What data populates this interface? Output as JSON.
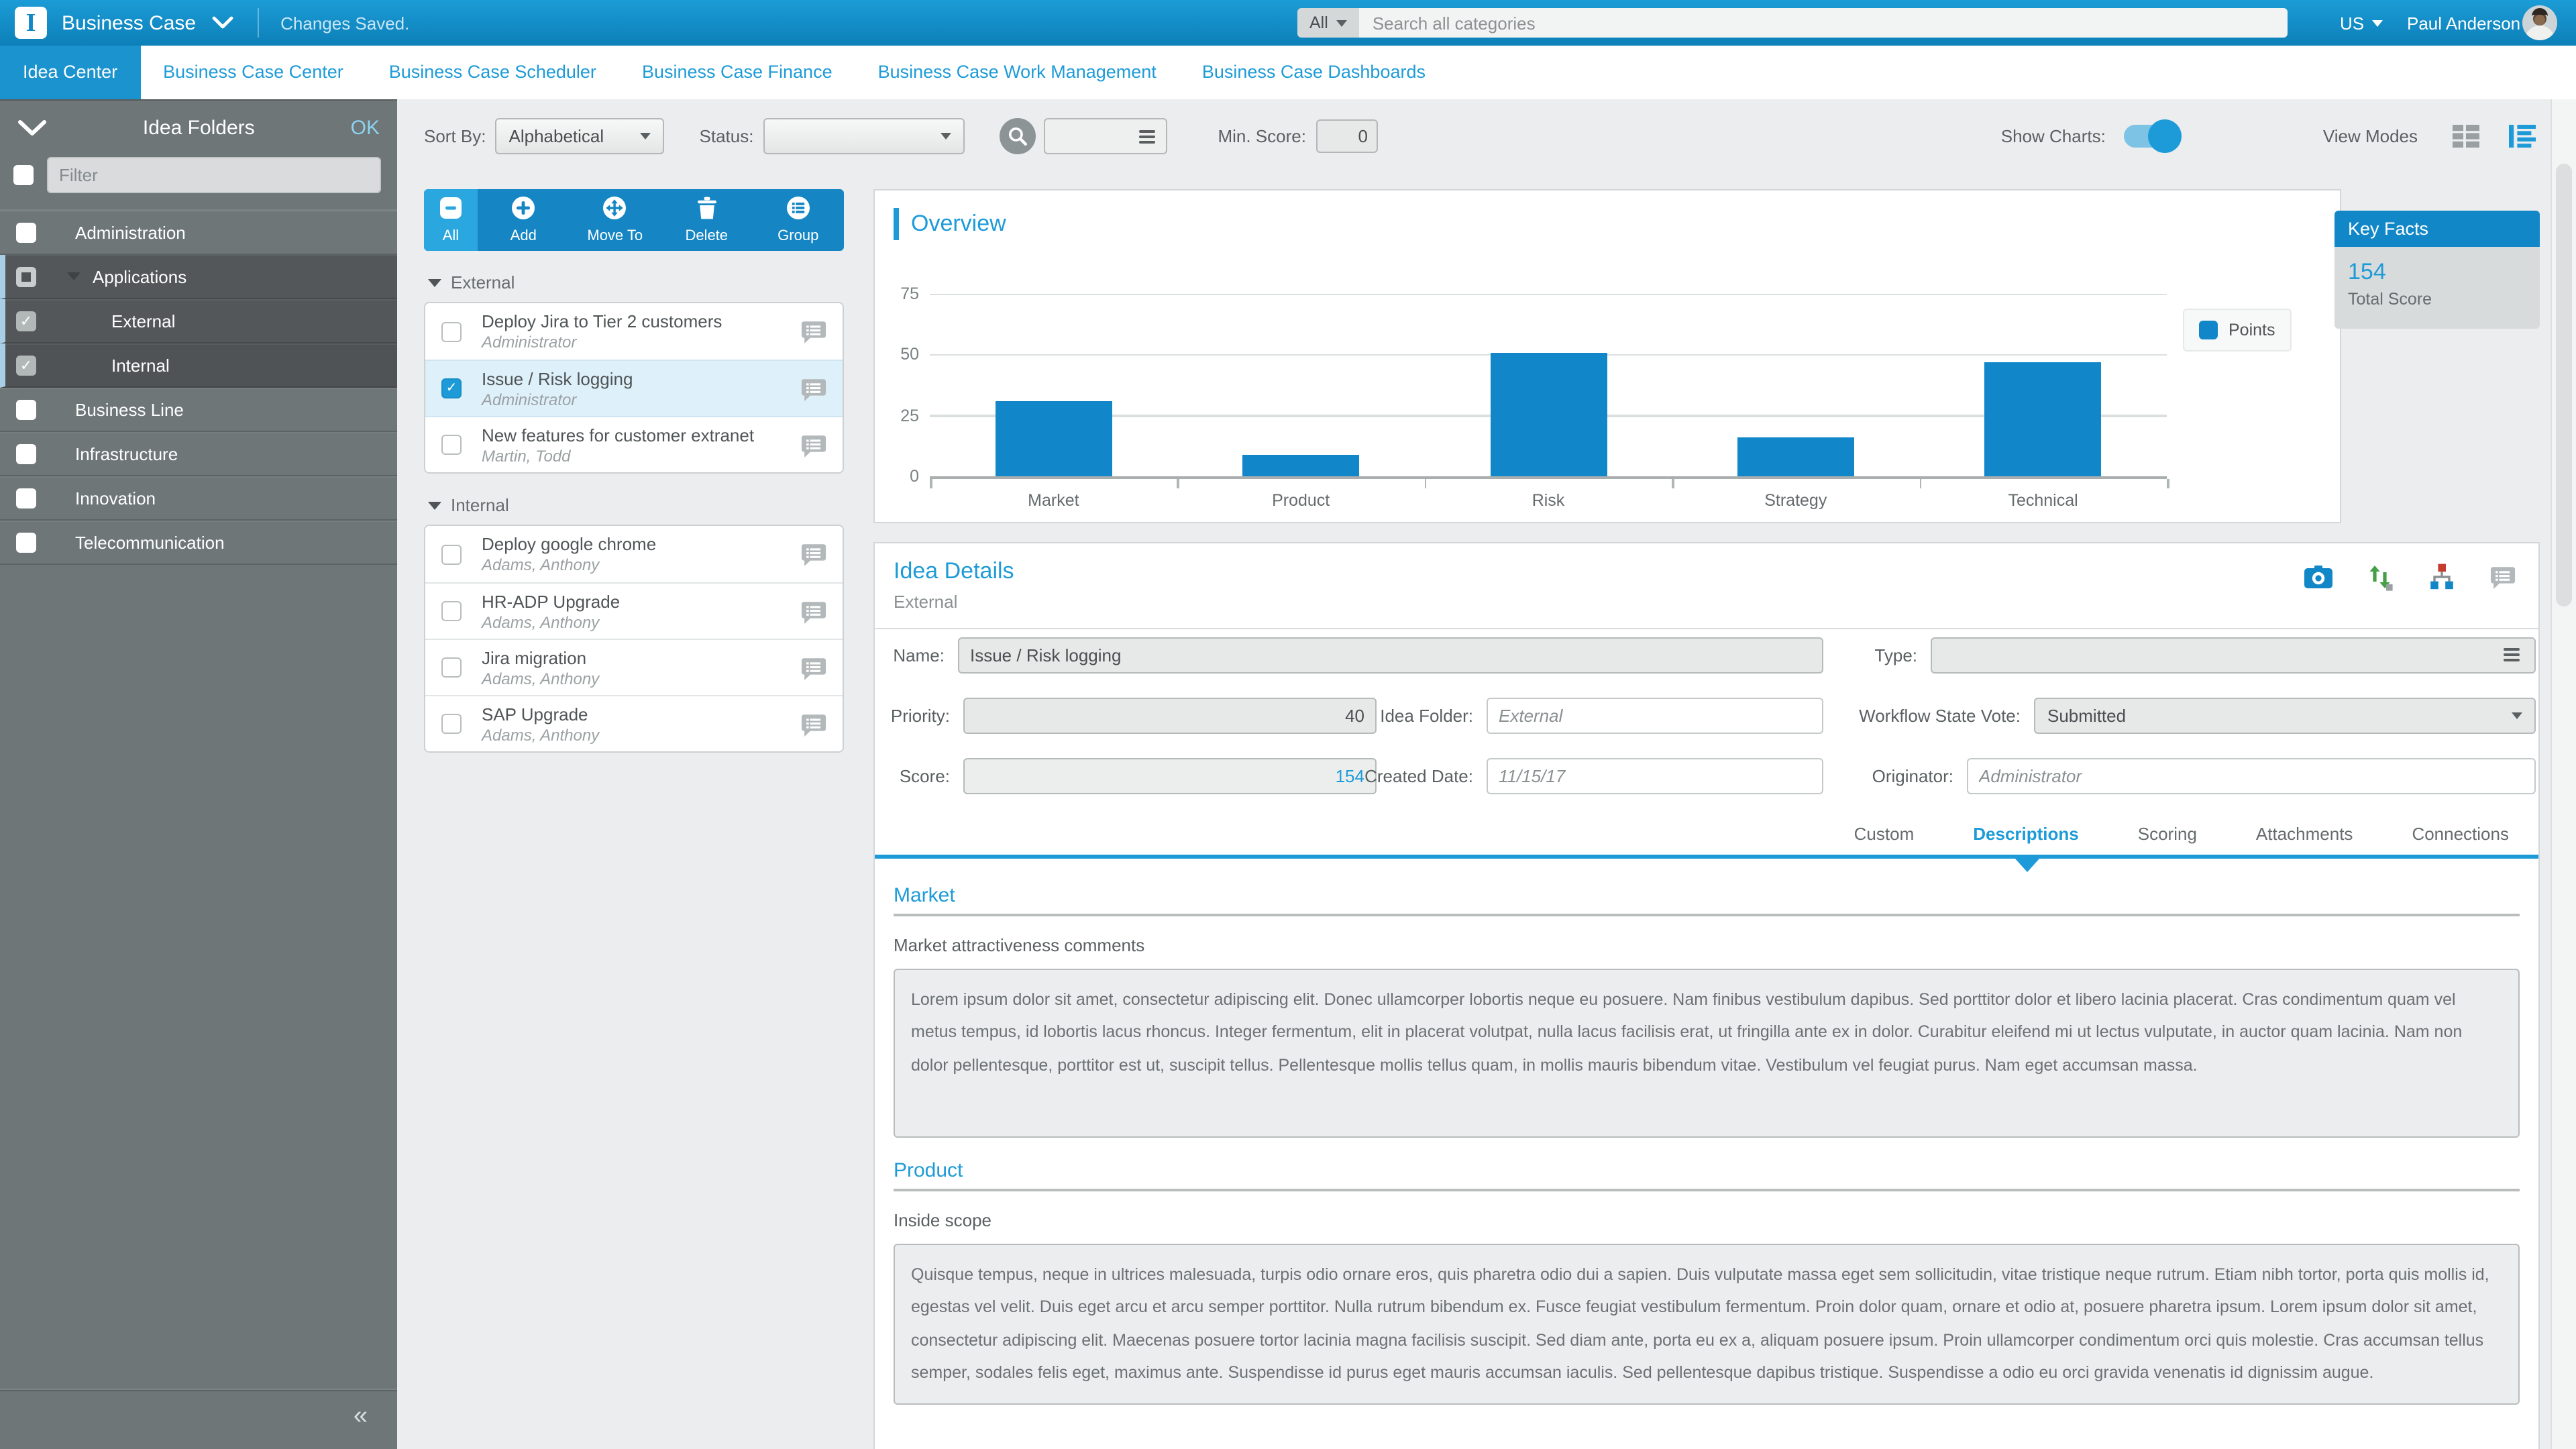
{
  "colors": {
    "accent_blue": "#1d9bd8",
    "header_blue": "#1287c8",
    "bar_blue": "#1186c9",
    "action_bar_blue": "#1586c3",
    "sidebar_gray": "#6e7678"
  },
  "header": {
    "logo_letter": "I",
    "app_title": "Business Case",
    "status_message": "Changes Saved.",
    "search": {
      "scope": "All",
      "placeholder": "Search all categories"
    },
    "locale": "US",
    "user_name": "Paul Anderson"
  },
  "nav": {
    "tabs": [
      {
        "label": "Idea Center",
        "active": true
      },
      {
        "label": "Business Case Center",
        "active": false
      },
      {
        "label": "Business Case Scheduler",
        "active": false
      },
      {
        "label": "Business Case Finance",
        "active": false
      },
      {
        "label": "Business Case Work Management",
        "active": false
      },
      {
        "label": "Business Case Dashboards",
        "active": false
      }
    ]
  },
  "sidebar": {
    "title": "Idea Folders",
    "ok_label": "OK",
    "filter_placeholder": "Filter",
    "items": [
      {
        "label": "Administration",
        "checked": "no",
        "level": 0,
        "selected": false,
        "expanded": false
      },
      {
        "label": "Applications",
        "checked": "partial",
        "level": 0,
        "selected": true,
        "expanded": true
      },
      {
        "label": "External",
        "checked": "yes",
        "level": 1,
        "selected": true,
        "expanded": false
      },
      {
        "label": "Internal",
        "checked": "yes",
        "level": 1,
        "selected": true,
        "alt": true,
        "expanded": false
      },
      {
        "label": "Business Line",
        "checked": "no",
        "level": 0,
        "selected": false,
        "expanded": false
      },
      {
        "label": "Infrastructure",
        "checked": "no",
        "level": 0,
        "selected": false,
        "expanded": false
      },
      {
        "label": "Innovation",
        "checked": "no",
        "level": 0,
        "selected": false,
        "expanded": false
      },
      {
        "label": "Telecommunication",
        "checked": "no",
        "level": 0,
        "selected": false,
        "expanded": false
      }
    ]
  },
  "toolbar": {
    "sort_by_label": "Sort By:",
    "sort_by_value": "Alphabetical",
    "status_label": "Status:",
    "status_value": "",
    "min_score_label": "Min. Score:",
    "min_score_value": "0",
    "show_charts_label": "Show Charts:",
    "show_charts_on": true,
    "view_modes_label": "View Modes"
  },
  "idea_list": {
    "actions": [
      {
        "label": "All",
        "icon": "select-all-icon"
      },
      {
        "label": "Add",
        "icon": "add-icon"
      },
      {
        "label": "Move To",
        "icon": "move-to-icon"
      },
      {
        "label": "Delete",
        "icon": "delete-icon"
      },
      {
        "label": "Group",
        "icon": "group-icon"
      }
    ],
    "groups": [
      {
        "name": "External",
        "items": [
          {
            "title": "Deploy Jira to Tier 2 customers",
            "author": "Administrator",
            "checked": false,
            "selected": false
          },
          {
            "title": "Issue / Risk logging",
            "author": "Administrator",
            "checked": true,
            "selected": true
          },
          {
            "title": "New features for customer extranet",
            "author": "Martin, Todd",
            "checked": false,
            "selected": false
          }
        ]
      },
      {
        "name": "Internal",
        "items": [
          {
            "title": "Deploy google chrome",
            "author": "Adams, Anthony",
            "checked": false,
            "selected": false
          },
          {
            "title": "HR-ADP Upgrade",
            "author": "Adams, Anthony",
            "checked": false,
            "selected": false
          },
          {
            "title": "Jira migration",
            "author": "Adams, Anthony",
            "checked": false,
            "selected": false
          },
          {
            "title": "SAP Upgrade",
            "author": "Adams, Anthony",
            "checked": false,
            "selected": false
          }
        ]
      }
    ]
  },
  "chart_data": {
    "type": "bar",
    "title": "Overview",
    "categories": [
      "Market",
      "Product",
      "Risk",
      "Strategy",
      "Technical"
    ],
    "values": [
      31,
      9,
      51,
      16,
      47
    ],
    "series_name": "Points",
    "xlabel": "",
    "ylabel": "",
    "ylim": [
      0,
      75
    ],
    "yticks": [
      0,
      25,
      50,
      75
    ],
    "grid": true,
    "legend_position": "right",
    "bar_color": "#1186c9"
  },
  "key_facts": {
    "title": "Key Facts",
    "score": "154",
    "score_label": "Total Score"
  },
  "idea_details": {
    "title": "Idea Details",
    "subtitle": "External",
    "fields": {
      "name_label": "Name:",
      "name_value": "Issue / Risk logging",
      "type_label": "Type:",
      "type_value": "",
      "priority_label": "Priority:",
      "priority_value": "40",
      "idea_folder_label": "Idea Folder:",
      "idea_folder_value": "External",
      "workflow_label": "Workflow State Vote:",
      "workflow_value": "Submitted",
      "score_label": "Score:",
      "score_value": "154",
      "created_label": "Created Date:",
      "created_value": "11/15/17",
      "originator_label": "Originator:",
      "originator_value": "Administrator"
    },
    "tabs": [
      {
        "label": "Custom",
        "active": false
      },
      {
        "label": "Descriptions",
        "active": true
      },
      {
        "label": "Scoring",
        "active": false
      },
      {
        "label": "Attachments",
        "active": false
      },
      {
        "label": "Connections",
        "active": false
      }
    ],
    "sections": [
      {
        "heading": "Market",
        "field_label": "Market attractiveness comments",
        "text": "Lorem ipsum dolor sit amet, consectetur adipiscing elit. Donec ullamcorper lobortis neque eu posuere. Nam finibus vestibulum dapibus. Sed porttitor dolor et libero lacinia placerat. Cras condimentum quam vel metus tempus, id lobortis lacus rhoncus. Integer fermentum, elit in placerat volutpat, nulla lacus facilisis erat, ut fringilla ante ex in dolor. Curabitur eleifend mi ut lectus vulputate, in auctor quam lacinia. Nam non dolor pellentesque, porttitor est ut, suscipit tellus. Pellentesque mollis tellus quam, in mollis mauris bibendum vitae. Vestibulum vel feugiat purus. Nam eget accumsan massa."
      },
      {
        "heading": "Product",
        "field_label": "Inside scope",
        "text": "Quisque tempus, neque in ultrices malesuada, turpis odio ornare eros, quis pharetra odio dui a sapien. Duis vulputate massa eget sem sollicitudin, vitae tristique neque rutrum. Etiam nibh tortor, porta quis mollis id, egestas vel velit. Duis eget arcu et arcu semper porttitor. Nulla rutrum bibendum ex. Fusce feugiat vestibulum fermentum. Proin dolor quam, ornare et odio at, posuere pharetra ipsum. Lorem ipsum dolor sit amet, consectetur adipiscing elit. Maecenas posuere tortor lacinia magna facilisis suscipit. Sed diam ante, porta eu ex a, aliquam posuere ipsum. Proin ullamcorper condimentum orci quis molestie. Cras accumsan tellus semper, sodales felis eget, maximus ante. Suspendisse id purus eget mauris accumsan iaculis. Sed pellentesque dapibus tristique. Suspendisse a odio eu orci gravida venenatis id dignissim augue."
      }
    ]
  }
}
